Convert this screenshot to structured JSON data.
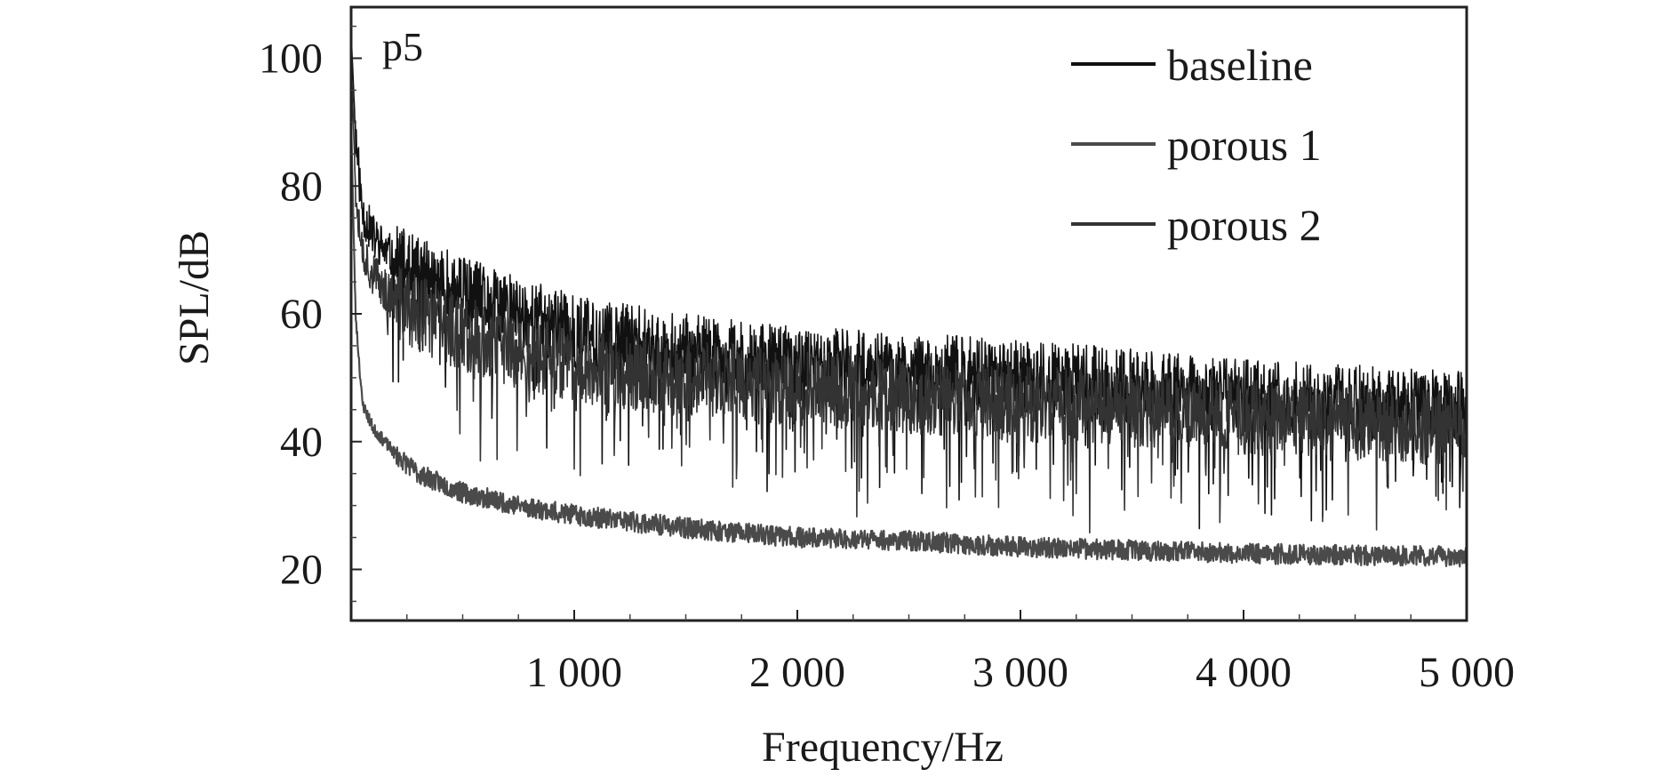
{
  "chart_data": {
    "type": "line",
    "title": "",
    "panel_label": "p5",
    "xlabel": "Frequency/Hz",
    "ylabel": "SPL/dB",
    "xlim": [
      0,
      5000
    ],
    "ylim": [
      12,
      108
    ],
    "x_ticks": [
      1000,
      2000,
      3000,
      4000,
      5000
    ],
    "x_tick_labels": [
      "1 000",
      "2 000",
      "3 000",
      "4 000",
      "5 000"
    ],
    "y_ticks": [
      20,
      40,
      60,
      80,
      100
    ],
    "y_tick_labels": [
      "20",
      "40",
      "60",
      "80",
      "100"
    ],
    "grid": false,
    "legend_position": "top-right",
    "series": [
      {
        "name": "baseline",
        "color": "#111111",
        "x": [
          0,
          20,
          50,
          100,
          200,
          300,
          500,
          750,
          1000,
          1500,
          2000,
          2500,
          3000,
          3500,
          4000,
          4500,
          5000
        ],
        "y": [
          104,
          88,
          76,
          72,
          68,
          66,
          63,
          60,
          57,
          54,
          52,
          51,
          50,
          48.5,
          47,
          46,
          45
        ]
      },
      {
        "name": "porous 1",
        "color": "#4a4a4a",
        "x": [
          0,
          20,
          50,
          100,
          200,
          300,
          500,
          750,
          1000,
          1500,
          2000,
          2500,
          3000,
          3500,
          4000,
          4500,
          5000
        ],
        "y": [
          90,
          60,
          46,
          42,
          38,
          35,
          32,
          30,
          28.5,
          26.5,
          25,
          24.5,
          23.5,
          23,
          22.5,
          22.2,
          22
        ]
      },
      {
        "name": "porous 2",
        "color": "#333333",
        "x": [
          0,
          20,
          50,
          100,
          200,
          300,
          500,
          750,
          1000,
          1500,
          2000,
          2500,
          3000,
          3500,
          4000,
          4500,
          5000
        ],
        "y": [
          100,
          80,
          70,
          66,
          62,
          60,
          57,
          54,
          52,
          50,
          48.5,
          47,
          46,
          45,
          44,
          43,
          42
        ]
      }
    ]
  }
}
